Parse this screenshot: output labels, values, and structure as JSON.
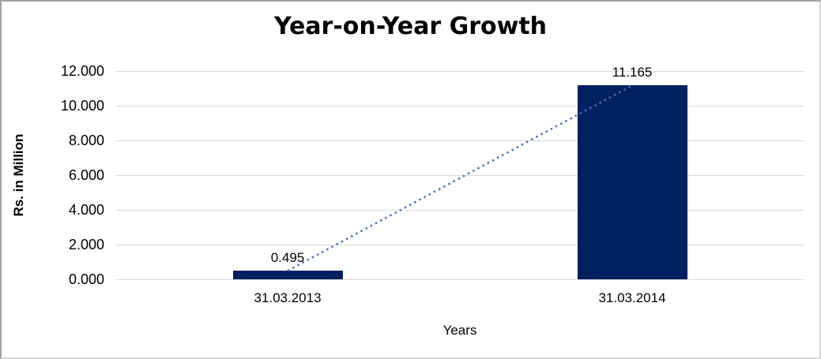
{
  "colors": {
    "bar": "#002060",
    "trendline": "#4472C4",
    "gridline": "#D9D9D9",
    "text": "#000000",
    "frame_border": "#A3A3A3"
  },
  "chart_data": {
    "type": "bar",
    "title": "Year-on-Year Growth",
    "xlabel": "Years",
    "ylabel": "Rs. in Million",
    "categories": [
      "31.03.2013",
      "31.03.2014"
    ],
    "series": [
      {
        "name": "Year-on-Year Growth",
        "values": [
          0.495,
          11.165
        ]
      }
    ],
    "data_labels": [
      "0.495",
      "11.165"
    ],
    "ylim": [
      0,
      12
    ],
    "ytick_step": 2,
    "yticks": [
      "0.000",
      "2.000",
      "4.000",
      "6.000",
      "8.000",
      "10.000",
      "12.000"
    ],
    "grid": true,
    "legend": false,
    "trendline": {
      "style": "dotted",
      "connects": [
        "0.495",
        "11.165"
      ]
    }
  }
}
